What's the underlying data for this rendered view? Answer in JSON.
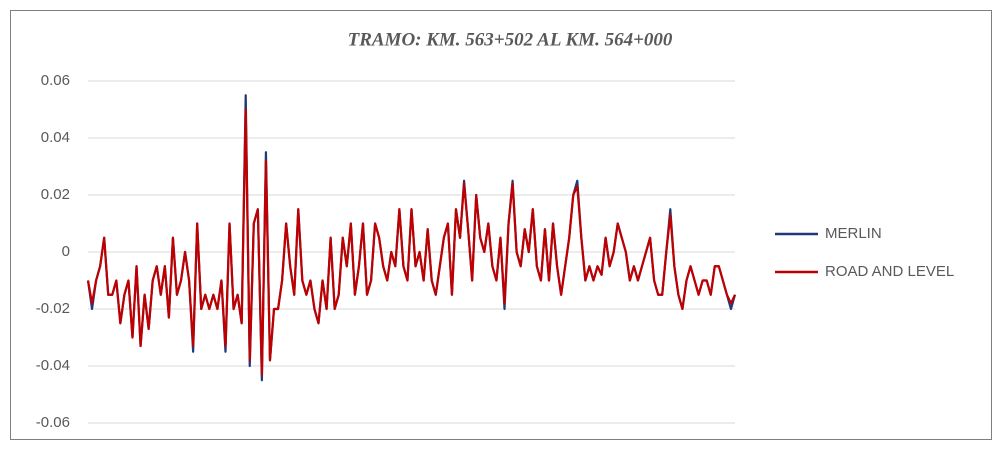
{
  "chart_data": {
    "type": "line",
    "title": "TRAMO: KM. 563+502 AL KM. 564+000",
    "ylim": [
      -0.06,
      0.06
    ],
    "yticks": [
      {
        "value": 0.06,
        "label": "0.06"
      },
      {
        "value": 0.04,
        "label": "0.04"
      },
      {
        "value": 0.02,
        "label": "0.02"
      },
      0,
      {
        "value": -0.02,
        "label": "-0.02"
      },
      {
        "value": -0.04,
        "label": "-0.04"
      },
      {
        "value": -0.06,
        "label": "-0.06"
      }
    ],
    "grid": true,
    "legend": "right",
    "series": [
      {
        "name": "MERLIN",
        "color": "#1f3a7a",
        "values": [
          -0.01,
          -0.02,
          -0.01,
          -0.005,
          0.005,
          -0.015,
          -0.015,
          -0.01,
          -0.025,
          -0.015,
          -0.01,
          -0.03,
          -0.005,
          -0.033,
          -0.015,
          -0.027,
          -0.01,
          -0.005,
          -0.015,
          -0.005,
          -0.023,
          0.005,
          -0.015,
          -0.01,
          0,
          -0.01,
          -0.035,
          0.01,
          -0.02,
          -0.015,
          -0.02,
          -0.015,
          -0.02,
          -0.01,
          -0.035,
          0.01,
          -0.02,
          -0.015,
          -0.025,
          0.055,
          -0.04,
          0.01,
          0.015,
          -0.045,
          0.035,
          -0.038,
          -0.02,
          -0.02,
          -0.01,
          0.01,
          -0.005,
          -0.015,
          0.015,
          -0.01,
          -0.015,
          -0.01,
          -0.02,
          -0.025,
          -0.01,
          -0.02,
          0.005,
          -0.02,
          -0.015,
          0.005,
          -0.005,
          0.01,
          -0.015,
          -0.005,
          0.01,
          -0.015,
          -0.01,
          0.01,
          0.005,
          -0.005,
          -0.01,
          0,
          -0.005,
          0.015,
          -0.005,
          -0.01,
          0.015,
          -0.005,
          0,
          -0.01,
          0.008,
          -0.01,
          -0.015,
          -0.005,
          0.005,
          0.01,
          -0.015,
          0.015,
          0.005,
          0.025,
          0.008,
          -0.01,
          0.02,
          0.005,
          0,
          0.01,
          -0.005,
          -0.01,
          0.005,
          -0.02,
          0.01,
          0.025,
          0,
          -0.005,
          0.008,
          0,
          0.015,
          -0.005,
          -0.01,
          0.008,
          -0.01,
          0.01,
          -0.005,
          -0.015,
          -0.005,
          0.005,
          0.02,
          0.025,
          0.005,
          -0.01,
          -0.005,
          -0.01,
          -0.005,
          -0.008,
          0.005,
          -0.005,
          0,
          0.01,
          0.005,
          0,
          -0.01,
          -0.005,
          -0.01,
          -0.005,
          0,
          0.005,
          -0.01,
          -0.015,
          -0.015,
          0,
          0.015,
          -0.005,
          -0.015,
          -0.02,
          -0.01,
          -0.005,
          -0.01,
          -0.015,
          -0.01,
          -0.01,
          -0.015,
          -0.005,
          -0.005,
          -0.01,
          -0.015,
          -0.02,
          -0.015
        ]
      },
      {
        "name": "ROAD AND LEVEL",
        "color": "#c00000",
        "values": [
          -0.01,
          -0.018,
          -0.01,
          -0.005,
          0.005,
          -0.015,
          -0.015,
          -0.01,
          -0.025,
          -0.015,
          -0.01,
          -0.03,
          -0.005,
          -0.033,
          -0.015,
          -0.027,
          -0.01,
          -0.005,
          -0.015,
          -0.005,
          -0.023,
          0.005,
          -0.015,
          -0.01,
          0,
          -0.01,
          -0.033,
          0.01,
          -0.02,
          -0.015,
          -0.02,
          -0.015,
          -0.02,
          -0.01,
          -0.033,
          0.01,
          -0.02,
          -0.015,
          -0.025,
          0.05,
          -0.038,
          0.01,
          0.015,
          -0.043,
          0.032,
          -0.038,
          -0.02,
          -0.02,
          -0.01,
          0.01,
          -0.005,
          -0.015,
          0.015,
          -0.01,
          -0.015,
          -0.01,
          -0.02,
          -0.025,
          -0.01,
          -0.02,
          0.005,
          -0.02,
          -0.015,
          0.005,
          -0.005,
          0.01,
          -0.015,
          -0.005,
          0.01,
          -0.015,
          -0.01,
          0.01,
          0.005,
          -0.005,
          -0.01,
          0,
          -0.005,
          0.015,
          -0.005,
          -0.01,
          0.015,
          -0.005,
          0,
          -0.01,
          0.008,
          -0.01,
          -0.015,
          -0.005,
          0.005,
          0.01,
          -0.015,
          0.015,
          0.005,
          0.024,
          0.008,
          -0.01,
          0.02,
          0.005,
          0,
          0.01,
          -0.005,
          -0.01,
          0.005,
          -0.018,
          0.01,
          0.024,
          0,
          -0.005,
          0.008,
          0,
          0.015,
          -0.005,
          -0.01,
          0.008,
          -0.01,
          0.01,
          -0.005,
          -0.015,
          -0.005,
          0.005,
          0.02,
          0.023,
          0.005,
          -0.01,
          -0.005,
          -0.01,
          -0.005,
          -0.008,
          0.005,
          -0.005,
          0,
          0.01,
          0.005,
          0,
          -0.01,
          -0.005,
          -0.01,
          -0.005,
          0,
          0.005,
          -0.01,
          -0.015,
          -0.015,
          0,
          0.013,
          -0.005,
          -0.015,
          -0.02,
          -0.01,
          -0.005,
          -0.01,
          -0.015,
          -0.01,
          -0.01,
          -0.015,
          -0.005,
          -0.005,
          -0.01,
          -0.015,
          -0.018,
          -0.015
        ]
      }
    ]
  }
}
